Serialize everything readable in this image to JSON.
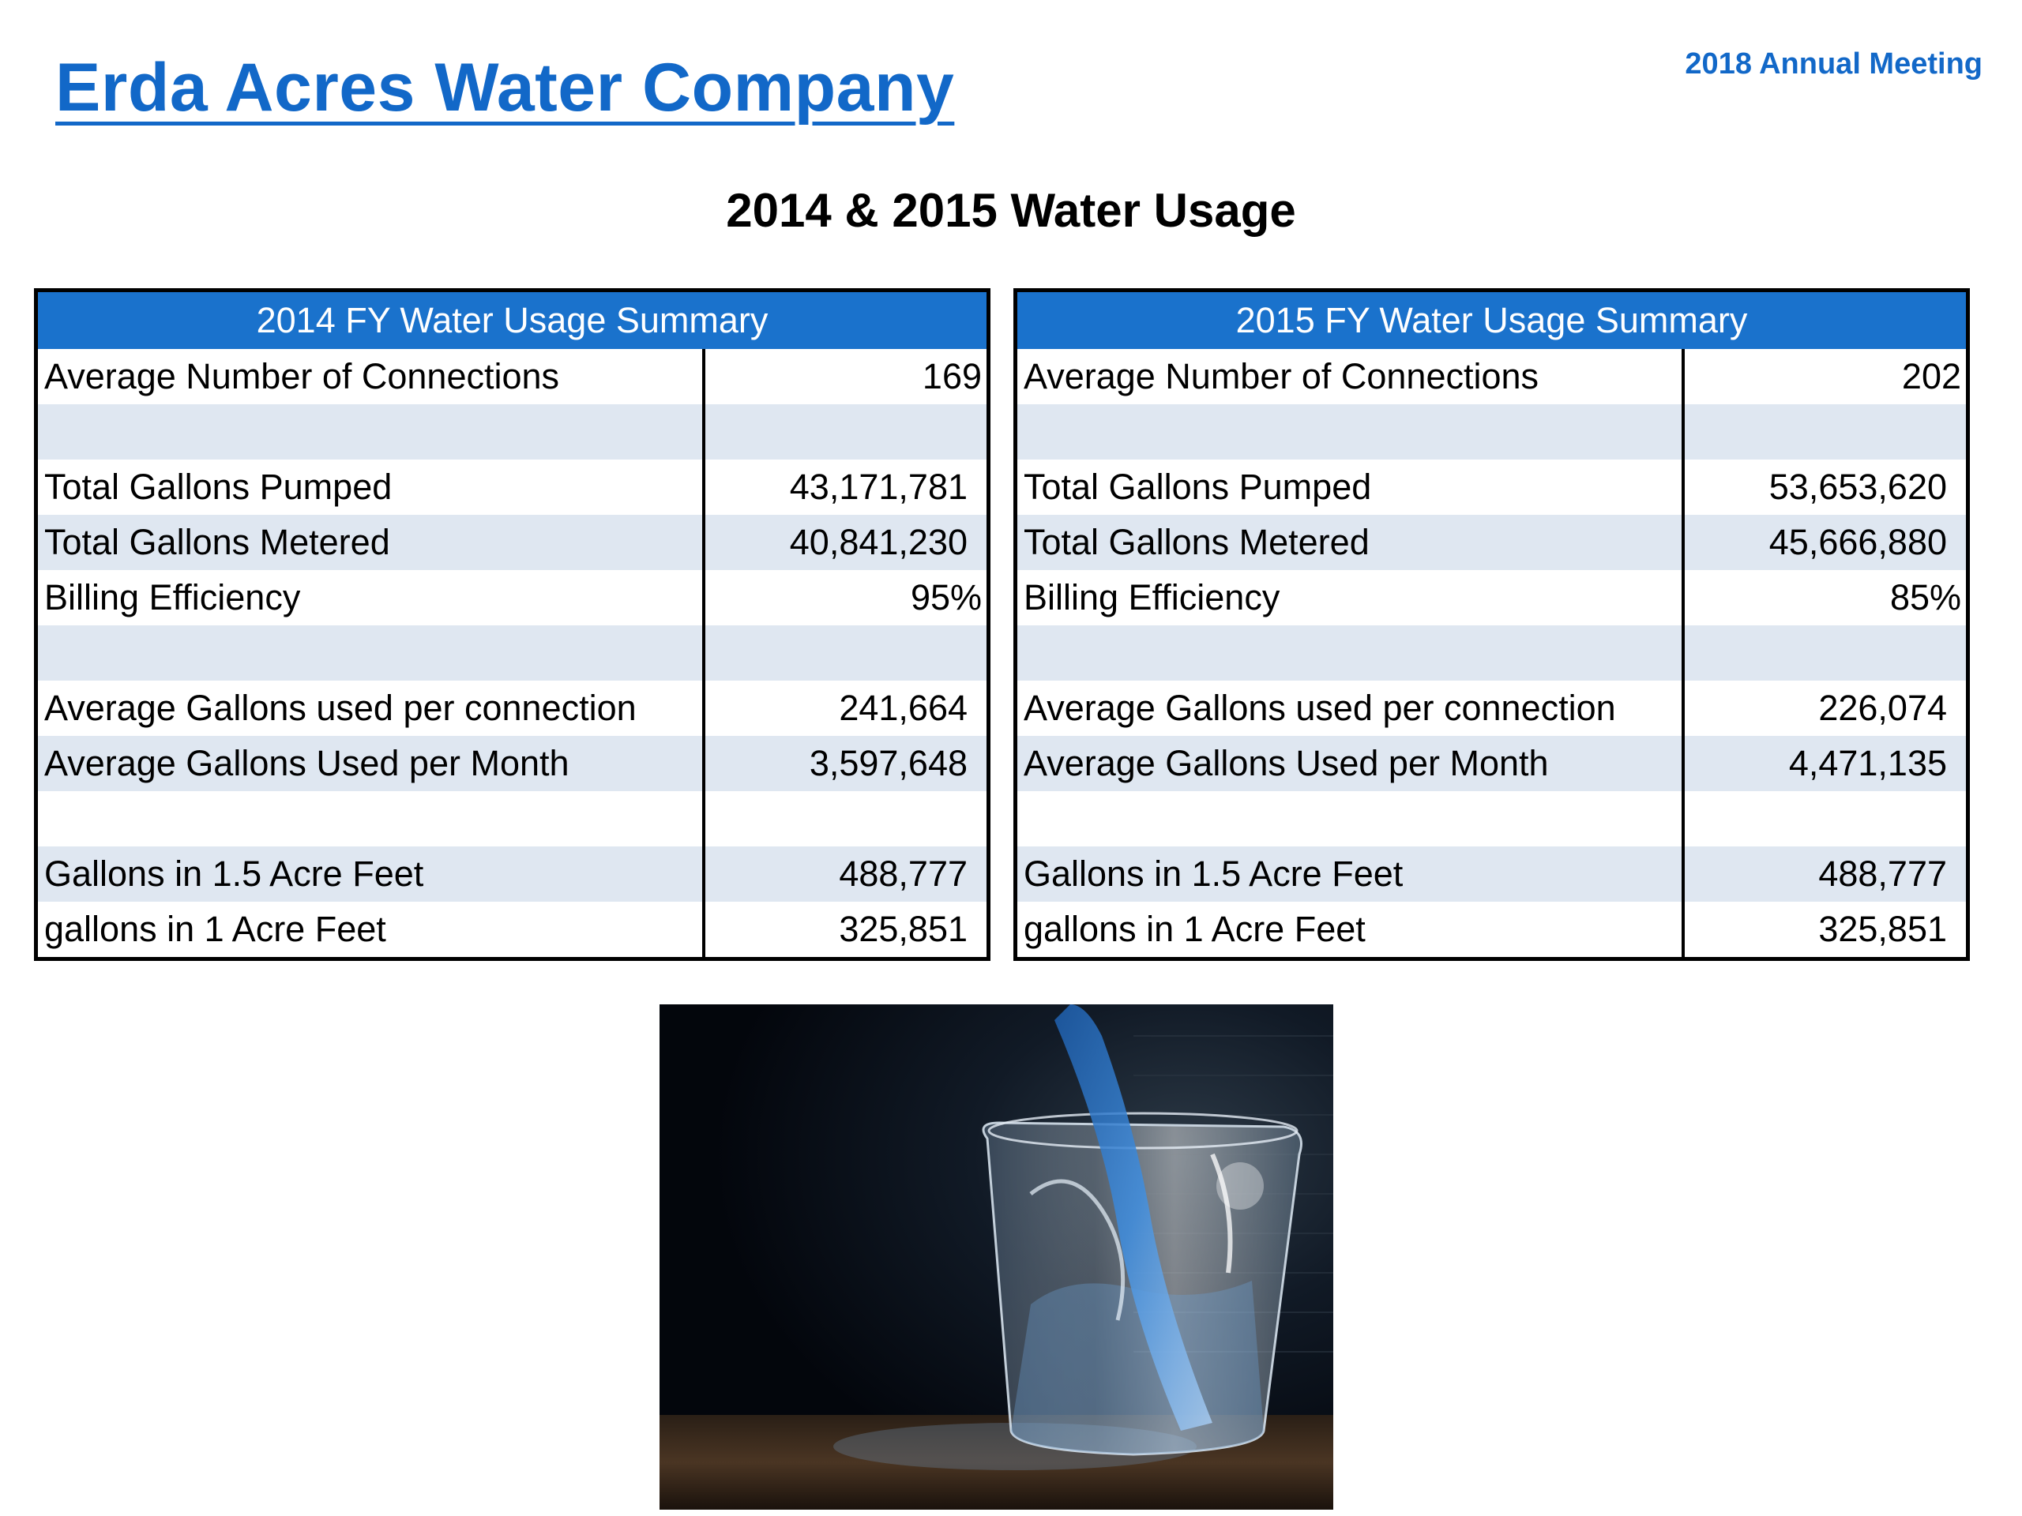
{
  "header": {
    "company_title": "Erda Acres Water Company",
    "meeting_label": "2018 Annual Meeting"
  },
  "page_title": "2014 & 2015 Water Usage",
  "tables": {
    "fy2014": {
      "title": "2014 FY Water Usage Summary",
      "rows": [
        {
          "label": "Average Number of Connections",
          "value": "169"
        },
        {
          "label": "",
          "value": ""
        },
        {
          "label": "Total Gallons Pumped",
          "value": "43,171,781"
        },
        {
          "label": "Total Gallons Metered",
          "value": "40,841,230"
        },
        {
          "label": "Billing Efficiency",
          "value": "95%"
        },
        {
          "label": "",
          "value": ""
        },
        {
          "label": "Average Gallons used per connection",
          "value": "241,664"
        },
        {
          "label": "Average Gallons Used per Month",
          "value": "3,597,648"
        },
        {
          "label": "",
          "value": ""
        },
        {
          "label": "Gallons in 1.5 Acre Feet",
          "value": "488,777"
        },
        {
          "label": "gallons in 1 Acre Feet",
          "value": "325,851"
        }
      ]
    },
    "fy2015": {
      "title": "2015 FY Water Usage Summary",
      "rows": [
        {
          "label": "Average Number of Connections",
          "value": "202"
        },
        {
          "label": "",
          "value": ""
        },
        {
          "label": "Total Gallons Pumped",
          "value": "53,653,620"
        },
        {
          "label": "Total Gallons Metered",
          "value": "45,666,880"
        },
        {
          "label": "Billing Efficiency",
          "value": "85%"
        },
        {
          "label": "",
          "value": ""
        },
        {
          "label": "Average Gallons used per connection",
          "value": "226,074"
        },
        {
          "label": "Average Gallons Used per Month",
          "value": "4,471,135"
        },
        {
          "label": "",
          "value": ""
        },
        {
          "label": "Gallons in 1.5 Acre Feet",
          "value": "488,777"
        },
        {
          "label": "gallons in 1 Acre Feet",
          "value": "325,851"
        }
      ]
    }
  },
  "colors": {
    "brand_blue": "#1268c8",
    "table_header_blue": "#1a72cc",
    "row_band": "#dfe7f1"
  }
}
